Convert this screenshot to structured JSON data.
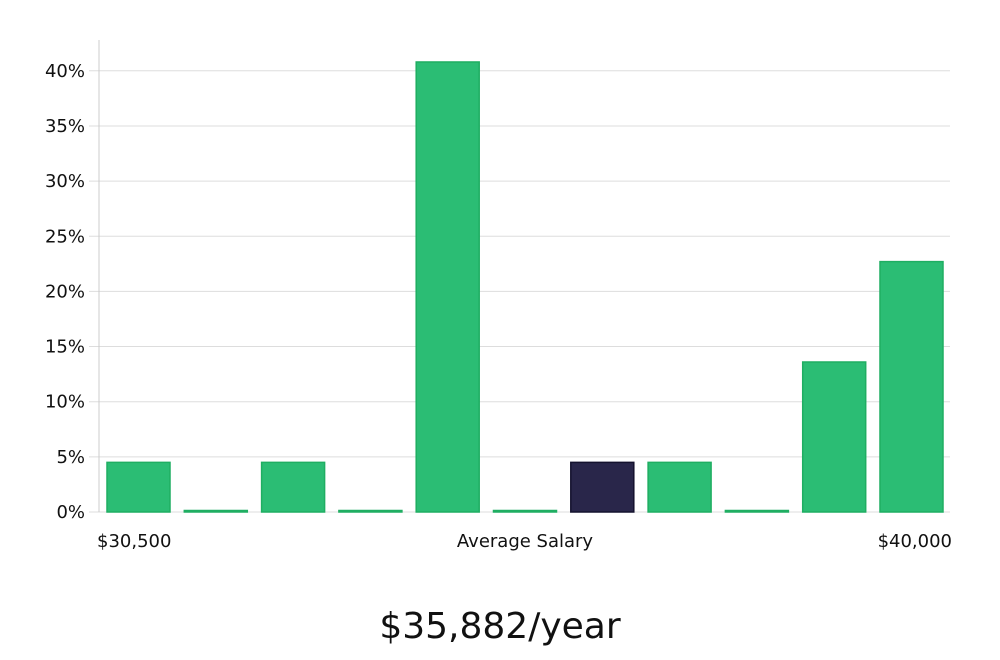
{
  "summary": {
    "value": "$35,882/year"
  },
  "chart_data": {
    "type": "bar",
    "categories": [
      "bin-1",
      "bin-2",
      "bin-3",
      "bin-4",
      "bin-5",
      "bin-6",
      "bin-7",
      "bin-8",
      "bin-9",
      "bin-10",
      "bin-11"
    ],
    "values": [
      4.5,
      0,
      4.5,
      0,
      40.8,
      0,
      4.5,
      4.5,
      0,
      13.6,
      22.7
    ],
    "highlight_index": 6,
    "ylim": [
      0,
      42.5
    ],
    "y_ticks": [
      0,
      5,
      10,
      15,
      20,
      25,
      30,
      35,
      40
    ],
    "y_tick_labels": [
      "0%",
      "5%",
      "10%",
      "15%",
      "20%",
      "25%",
      "30%",
      "35%",
      "40%"
    ],
    "x_labels": {
      "left": "$30,500",
      "center": "Average Salary",
      "right": "$40,000"
    },
    "grid": true,
    "colors": {
      "bar": "#2bbd74",
      "bar_edge": "#1fae62",
      "highlight": "#29264a",
      "highlight_edge": "#14122e",
      "grid": "#dddddd",
      "axis": "#cccccc"
    }
  }
}
